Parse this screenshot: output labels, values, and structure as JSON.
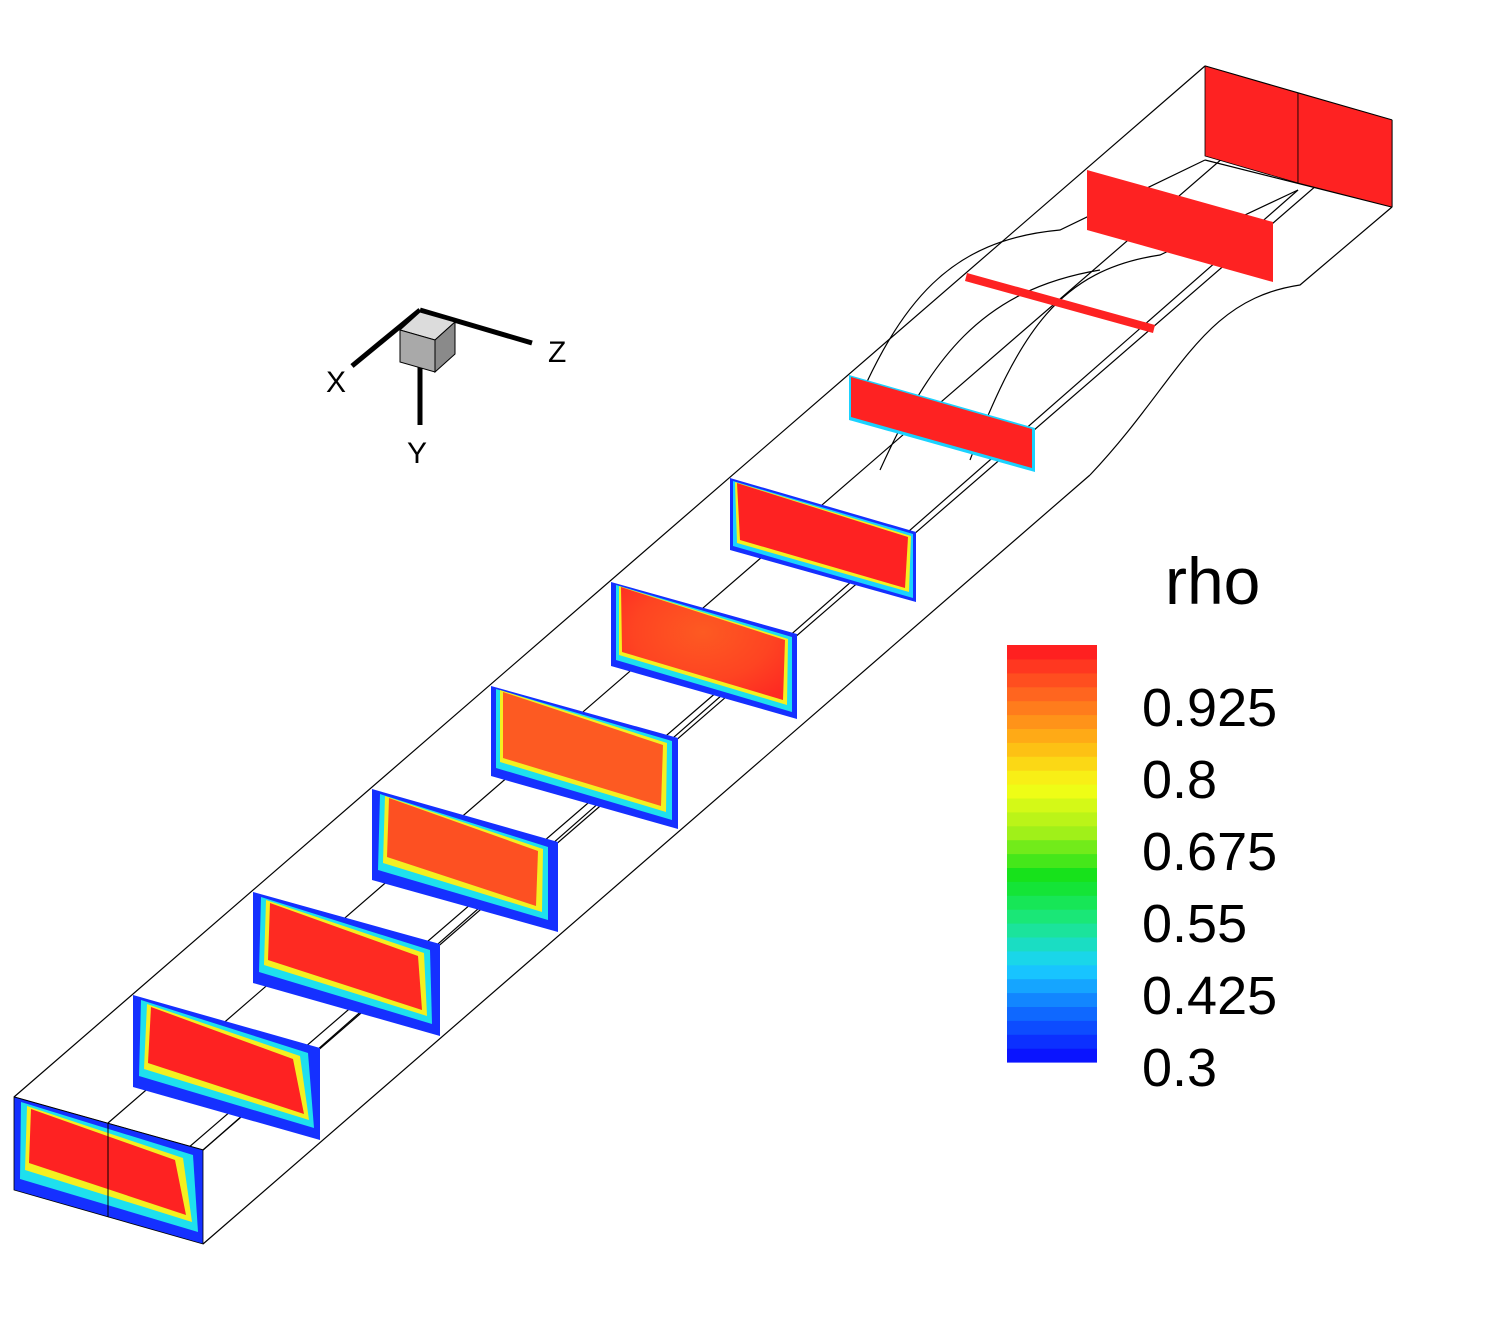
{
  "axis_triad": {
    "x_label": "X",
    "y_label": "Y",
    "z_label": "Z"
  },
  "legend": {
    "title": "rho",
    "ticks": [
      "0.925",
      "0.8",
      "0.675",
      "0.55",
      "0.425",
      "0.3"
    ],
    "colors": [
      "#0a14ff",
      "#0f6eff",
      "#1ad2ff",
      "#1be882",
      "#12e21b",
      "#a5f019",
      "#f6ff16",
      "#ffb414",
      "#ff6a1f",
      "#ff2020"
    ]
  },
  "slice_colors": {
    "wall": "#1530ff",
    "layer_cyan": "#1ee0ee",
    "layer_green": "#2ee85a",
    "layer_yellow": "#f4f020",
    "core": "#fe2222",
    "core_mixed": "#fd5222"
  }
}
